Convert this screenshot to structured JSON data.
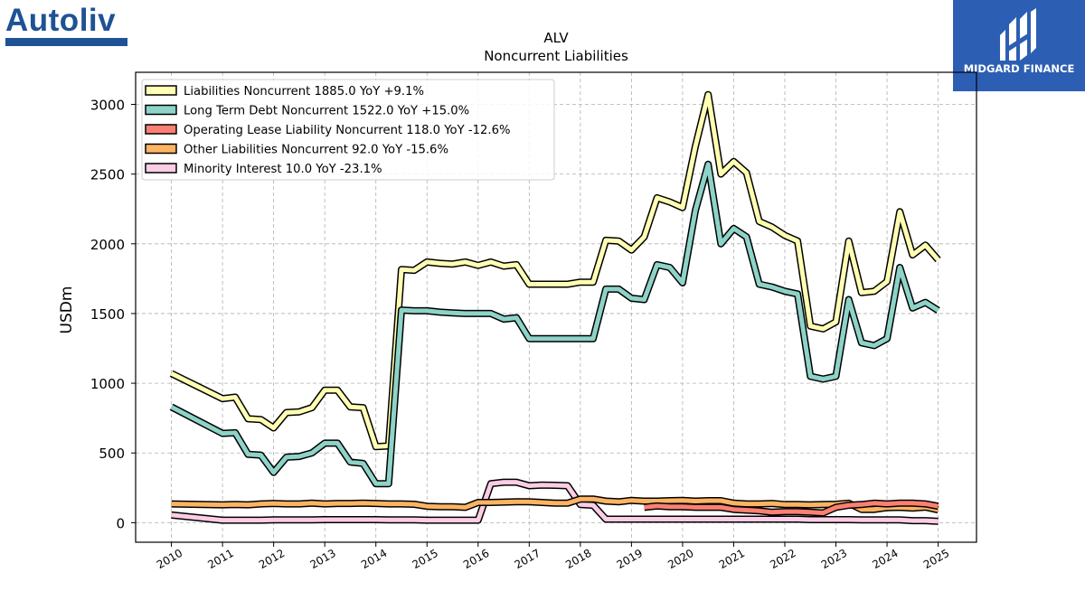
{
  "logos": {
    "left_wordmark": "Autoliv",
    "right_wordmark": "MIDGARD FINANCE"
  },
  "chart_data": {
    "type": "line",
    "title": "ALV",
    "subtitle": "Noncurrent  Liabilities",
    "xlabel": "",
    "ylabel": "USDm",
    "xlim": [
      2009.3,
      2025.75
    ],
    "ylim": [
      -140,
      3230
    ],
    "x_ticks": [
      "2010",
      "2011",
      "2012",
      "2013",
      "2014",
      "2015",
      "2016",
      "2017",
      "2018",
      "2019",
      "2020",
      "2021",
      "2022",
      "2023",
      "2024",
      "2025"
    ],
    "y_ticks": [
      0,
      500,
      1000,
      1500,
      2000,
      2500,
      3000
    ],
    "grid": true,
    "legend_position": "top-left",
    "series": [
      {
        "name": "Liabilities Noncurrent",
        "legend": "Liabilities Noncurrent  1885.0 YoY +9.1%",
        "color": "#ffffb3",
        "points": [
          [
            2010,
            1070
          ],
          [
            2011,
            890
          ],
          [
            2011.25,
            900
          ],
          [
            2011.5,
            745
          ],
          [
            2011.75,
            740
          ],
          [
            2012,
            680
          ],
          [
            2012.25,
            790
          ],
          [
            2012.5,
            795
          ],
          [
            2012.75,
            825
          ],
          [
            2013,
            950
          ],
          [
            2013.25,
            950
          ],
          [
            2013.5,
            830
          ],
          [
            2013.75,
            825
          ],
          [
            2014,
            545
          ],
          [
            2014.25,
            550
          ],
          [
            2014.5,
            1815
          ],
          [
            2014.75,
            1810
          ],
          [
            2015,
            1870
          ],
          [
            2015.25,
            1860
          ],
          [
            2015.5,
            1855
          ],
          [
            2015.75,
            1870
          ],
          [
            2016,
            1845
          ],
          [
            2016.25,
            1870
          ],
          [
            2016.5,
            1840
          ],
          [
            2016.75,
            1850
          ],
          [
            2017,
            1710
          ],
          [
            2017.25,
            1710
          ],
          [
            2017.5,
            1710
          ],
          [
            2017.75,
            1710
          ],
          [
            2018,
            1725
          ],
          [
            2018.25,
            1725
          ],
          [
            2018.5,
            2025
          ],
          [
            2018.75,
            2020
          ],
          [
            2019,
            1955
          ],
          [
            2019.25,
            2050
          ],
          [
            2019.5,
            2330
          ],
          [
            2019.75,
            2300
          ],
          [
            2020,
            2260
          ],
          [
            2020.25,
            2700
          ],
          [
            2020.5,
            3070
          ],
          [
            2020.75,
            2500
          ],
          [
            2021,
            2590
          ],
          [
            2021.25,
            2510
          ],
          [
            2021.5,
            2160
          ],
          [
            2021.75,
            2120
          ],
          [
            2022,
            2060
          ],
          [
            2022.25,
            2020
          ],
          [
            2022.5,
            1410
          ],
          [
            2022.75,
            1390
          ],
          [
            2023,
            1440
          ],
          [
            2023.25,
            2020
          ],
          [
            2023.5,
            1650
          ],
          [
            2023.75,
            1660
          ],
          [
            2024,
            1730
          ],
          [
            2024.25,
            2230
          ],
          [
            2024.5,
            1920
          ],
          [
            2024.75,
            1990
          ],
          [
            2025,
            1885
          ]
        ]
      },
      {
        "name": "Long Term Debt Noncurrent",
        "legend": "Long Term Debt Noncurrent  1522.0 YoY +15.0%",
        "color": "#8dd3c7",
        "points": [
          [
            2010,
            830
          ],
          [
            2011,
            640
          ],
          [
            2011.25,
            645
          ],
          [
            2011.5,
            490
          ],
          [
            2011.75,
            485
          ],
          [
            2012,
            360
          ],
          [
            2012.25,
            470
          ],
          [
            2012.5,
            475
          ],
          [
            2012.75,
            500
          ],
          [
            2013,
            570
          ],
          [
            2013.25,
            570
          ],
          [
            2013.5,
            435
          ],
          [
            2013.75,
            425
          ],
          [
            2014,
            280
          ],
          [
            2014.25,
            280
          ],
          [
            2014.5,
            1525
          ],
          [
            2014.75,
            1520
          ],
          [
            2015,
            1520
          ],
          [
            2015.25,
            1510
          ],
          [
            2015.5,
            1505
          ],
          [
            2015.75,
            1500
          ],
          [
            2016,
            1500
          ],
          [
            2016.25,
            1500
          ],
          [
            2016.5,
            1460
          ],
          [
            2016.75,
            1470
          ],
          [
            2017,
            1320
          ],
          [
            2017.25,
            1320
          ],
          [
            2017.5,
            1320
          ],
          [
            2017.75,
            1320
          ],
          [
            2018,
            1320
          ],
          [
            2018.25,
            1320
          ],
          [
            2018.5,
            1675
          ],
          [
            2018.75,
            1675
          ],
          [
            2019,
            1610
          ],
          [
            2019.25,
            1600
          ],
          [
            2019.5,
            1850
          ],
          [
            2019.75,
            1830
          ],
          [
            2020,
            1720
          ],
          [
            2020.25,
            2240
          ],
          [
            2020.5,
            2570
          ],
          [
            2020.75,
            2000
          ],
          [
            2021,
            2110
          ],
          [
            2021.25,
            2050
          ],
          [
            2021.5,
            1710
          ],
          [
            2021.75,
            1690
          ],
          [
            2022,
            1660
          ],
          [
            2022.25,
            1640
          ],
          [
            2022.5,
            1050
          ],
          [
            2022.75,
            1030
          ],
          [
            2023,
            1050
          ],
          [
            2023.25,
            1600
          ],
          [
            2023.5,
            1290
          ],
          [
            2023.75,
            1270
          ],
          [
            2024,
            1320
          ],
          [
            2024.25,
            1830
          ],
          [
            2024.5,
            1540
          ],
          [
            2024.75,
            1580
          ],
          [
            2025,
            1522
          ]
        ]
      },
      {
        "name": "Operating Lease Liability Noncurrent",
        "legend": "Operating Lease Liability Noncurrent  118.0 YoY -12.6%",
        "color": "#fb8072",
        "points": [
          [
            2019.25,
            110
          ],
          [
            2019.5,
            120
          ],
          [
            2019.75,
            115
          ],
          [
            2020,
            115
          ],
          [
            2020.25,
            110
          ],
          [
            2020.5,
            110
          ],
          [
            2020.75,
            110
          ],
          [
            2021,
            95
          ],
          [
            2021.25,
            90
          ],
          [
            2021.5,
            85
          ],
          [
            2021.75,
            75
          ],
          [
            2022,
            80
          ],
          [
            2022.25,
            80
          ],
          [
            2022.5,
            75
          ],
          [
            2022.75,
            70
          ],
          [
            2023,
            110
          ],
          [
            2023.25,
            125
          ],
          [
            2023.5,
            130
          ],
          [
            2023.75,
            140
          ],
          [
            2024,
            135
          ],
          [
            2024.25,
            140
          ],
          [
            2024.5,
            140
          ],
          [
            2024.75,
            135
          ],
          [
            2025,
            118
          ]
        ]
      },
      {
        "name": "Other Liabilities Noncurrent",
        "legend": "Other Liabilities Noncurrent  92.0 YoY -15.6%",
        "color": "#fdb462",
        "points": [
          [
            2010,
            135
          ],
          [
            2011,
            128
          ],
          [
            2011.25,
            130
          ],
          [
            2011.5,
            128
          ],
          [
            2011.75,
            135
          ],
          [
            2012,
            138
          ],
          [
            2012.25,
            135
          ],
          [
            2012.5,
            135
          ],
          [
            2012.75,
            140
          ],
          [
            2013,
            135
          ],
          [
            2013.25,
            138
          ],
          [
            2013.5,
            138
          ],
          [
            2013.75,
            140
          ],
          [
            2014,
            138
          ],
          [
            2014.25,
            135
          ],
          [
            2014.5,
            135
          ],
          [
            2014.75,
            132
          ],
          [
            2015,
            118
          ],
          [
            2015.25,
            115
          ],
          [
            2015.5,
            115
          ],
          [
            2015.75,
            110
          ],
          [
            2016,
            145
          ],
          [
            2016.25,
            145
          ],
          [
            2016.5,
            148
          ],
          [
            2016.75,
            150
          ],
          [
            2017,
            150
          ],
          [
            2017.25,
            145
          ],
          [
            2017.5,
            140
          ],
          [
            2017.75,
            140
          ],
          [
            2018,
            170
          ],
          [
            2018.25,
            170
          ],
          [
            2018.5,
            155
          ],
          [
            2018.75,
            150
          ],
          [
            2019,
            160
          ],
          [
            2019.25,
            155
          ],
          [
            2019.5,
            155
          ],
          [
            2019.75,
            158
          ],
          [
            2020,
            160
          ],
          [
            2020.25,
            155
          ],
          [
            2020.5,
            158
          ],
          [
            2020.75,
            158
          ],
          [
            2021,
            140
          ],
          [
            2021.25,
            135
          ],
          [
            2021.5,
            135
          ],
          [
            2021.75,
            138
          ],
          [
            2022,
            130
          ],
          [
            2022.25,
            130
          ],
          [
            2022.5,
            128
          ],
          [
            2022.75,
            130
          ],
          [
            2023,
            132
          ],
          [
            2023.25,
            140
          ],
          [
            2023.5,
            95
          ],
          [
            2023.75,
            95
          ],
          [
            2024,
            108
          ],
          [
            2024.25,
            110
          ],
          [
            2024.5,
            105
          ],
          [
            2024.75,
            112
          ],
          [
            2025,
            92
          ]
        ]
      },
      {
        "name": "Minority Interest",
        "legend": "Minority Interest  10.0 YoY -23.1%",
        "color": "#fccde5",
        "points": [
          [
            2010,
            55
          ],
          [
            2011,
            18
          ],
          [
            2011.25,
            18
          ],
          [
            2011.5,
            18
          ],
          [
            2011.75,
            18
          ],
          [
            2012,
            20
          ],
          [
            2012.25,
            20
          ],
          [
            2012.5,
            20
          ],
          [
            2012.75,
            20
          ],
          [
            2013,
            22
          ],
          [
            2013.25,
            22
          ],
          [
            2013.5,
            22
          ],
          [
            2013.75,
            22
          ],
          [
            2014,
            22
          ],
          [
            2014.25,
            20
          ],
          [
            2014.5,
            20
          ],
          [
            2014.75,
            20
          ],
          [
            2015,
            18
          ],
          [
            2015.25,
            18
          ],
          [
            2015.5,
            18
          ],
          [
            2015.75,
            18
          ],
          [
            2016,
            18
          ],
          [
            2016.25,
            280
          ],
          [
            2016.5,
            290
          ],
          [
            2016.75,
            290
          ],
          [
            2017,
            265
          ],
          [
            2017.25,
            270
          ],
          [
            2017.5,
            268
          ],
          [
            2017.75,
            265
          ],
          [
            2018,
            130
          ],
          [
            2018.25,
            125
          ],
          [
            2018.5,
            25
          ],
          [
            2018.75,
            25
          ],
          [
            2019,
            25
          ],
          [
            2019.25,
            25
          ],
          [
            2019.5,
            25
          ],
          [
            2019.75,
            25
          ],
          [
            2020,
            25
          ],
          [
            2020.25,
            25
          ],
          [
            2020.5,
            25
          ],
          [
            2020.75,
            25
          ],
          [
            2021,
            25
          ],
          [
            2021.25,
            25
          ],
          [
            2021.5,
            25
          ],
          [
            2021.75,
            25
          ],
          [
            2022,
            25
          ],
          [
            2022.25,
            25
          ],
          [
            2022.5,
            22
          ],
          [
            2022.75,
            22
          ],
          [
            2023,
            22
          ],
          [
            2023.25,
            22
          ],
          [
            2023.5,
            20
          ],
          [
            2023.75,
            20
          ],
          [
            2024,
            20
          ],
          [
            2024.25,
            20
          ],
          [
            2024.5,
            15
          ],
          [
            2024.75,
            15
          ],
          [
            2025,
            10
          ]
        ]
      }
    ]
  }
}
